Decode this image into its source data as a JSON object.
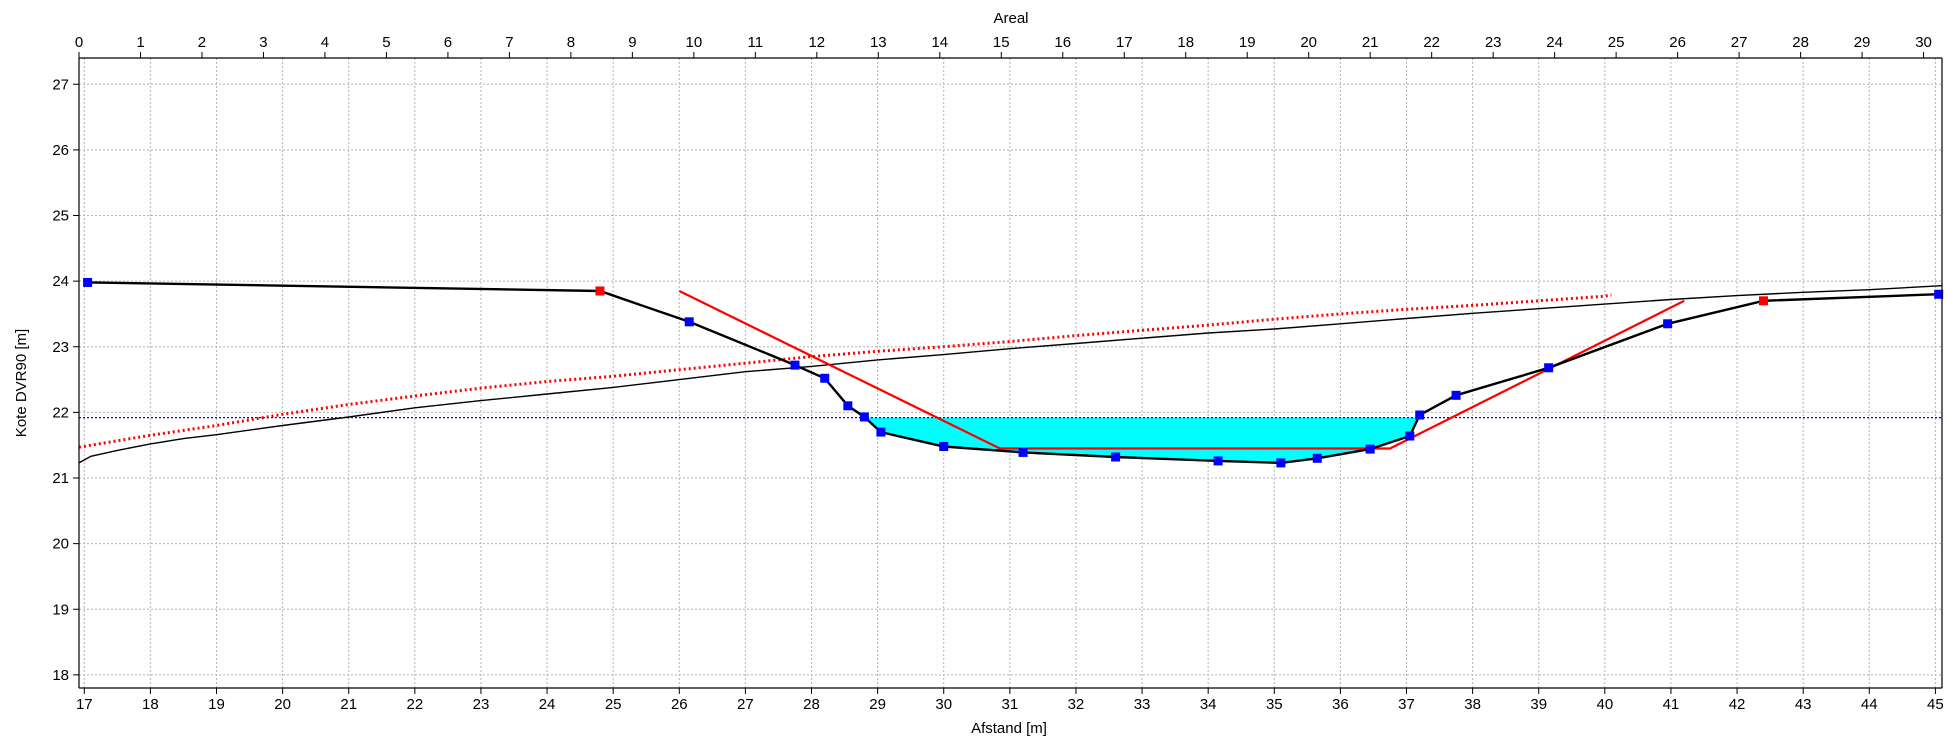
{
  "chart_data": {
    "type": "line",
    "title": "",
    "top_axis": {
      "label": "Areal",
      "range": [
        0,
        30.3
      ],
      "ticks": [
        0,
        1,
        2,
        3,
        4,
        5,
        6,
        7,
        8,
        9,
        10,
        11,
        12,
        13,
        14,
        15,
        16,
        17,
        18,
        19,
        20,
        21,
        22,
        23,
        24,
        25,
        26,
        27,
        28,
        29,
        30
      ]
    },
    "xlabel": "Afstand [m]",
    "ylabel": "Kote DVR90 [m]",
    "xlim": [
      16.92,
      45.1
    ],
    "ylim": [
      17.8,
      27.4
    ],
    "xticks": [
      17,
      18,
      19,
      20,
      21,
      22,
      23,
      24,
      25,
      26,
      27,
      28,
      29,
      30,
      31,
      32,
      33,
      34,
      35,
      36,
      37,
      38,
      39,
      40,
      41,
      42,
      43,
      44,
      45
    ],
    "yticks": [
      18,
      19,
      20,
      21,
      22,
      23,
      24,
      25,
      26,
      27
    ],
    "grid": true,
    "water_level": 21.92,
    "series": [
      {
        "kind": "cross-section",
        "color": "#000000",
        "x": [
          17.05,
          24.8,
          26.15,
          27.75,
          28.2,
          28.55,
          28.8,
          29.05,
          30.0,
          31.2,
          32.6,
          34.15,
          35.1,
          35.65,
          36.45,
          37.05,
          37.2,
          37.75,
          39.15,
          40.95,
          42.4,
          45.05
        ],
        "y": [
          23.98,
          23.85,
          23.38,
          22.72,
          22.52,
          22.1,
          21.93,
          21.7,
          21.48,
          21.39,
          21.32,
          21.26,
          21.23,
          21.3,
          21.44,
          21.64,
          21.96,
          22.26,
          22.68,
          23.35,
          23.7,
          23.8
        ],
        "markers": [
          {
            "x": 17.05,
            "y": 23.98,
            "color": "#0000ff"
          },
          {
            "x": 24.8,
            "y": 23.85,
            "color": "#ff0000"
          },
          {
            "x": 26.15,
            "y": 23.38,
            "color": "#0000ff"
          },
          {
            "x": 27.75,
            "y": 22.72,
            "color": "#0000ff"
          },
          {
            "x": 28.2,
            "y": 22.52,
            "color": "#0000ff"
          },
          {
            "x": 28.55,
            "y": 22.1,
            "color": "#0000ff"
          },
          {
            "x": 28.8,
            "y": 21.93,
            "color": "#0000ff"
          },
          {
            "x": 29.05,
            "y": 21.7,
            "color": "#0000ff"
          },
          {
            "x": 30.0,
            "y": 21.48,
            "color": "#0000ff"
          },
          {
            "x": 31.2,
            "y": 21.39,
            "color": "#0000ff"
          },
          {
            "x": 32.6,
            "y": 21.32,
            "color": "#0000ff"
          },
          {
            "x": 34.15,
            "y": 21.26,
            "color": "#0000ff"
          },
          {
            "x": 35.1,
            "y": 21.23,
            "color": "#0000ff"
          },
          {
            "x": 35.65,
            "y": 21.3,
            "color": "#0000ff"
          },
          {
            "x": 36.45,
            "y": 21.44,
            "color": "#0000ff"
          },
          {
            "x": 37.05,
            "y": 21.64,
            "color": "#0000ff"
          },
          {
            "x": 37.2,
            "y": 21.96,
            "color": "#0000ff"
          },
          {
            "x": 37.75,
            "y": 22.26,
            "color": "#0000ff"
          },
          {
            "x": 39.15,
            "y": 22.68,
            "color": "#0000ff"
          },
          {
            "x": 40.95,
            "y": 23.35,
            "color": "#0000ff"
          },
          {
            "x": 42.4,
            "y": 23.7,
            "color": "#ff0000"
          },
          {
            "x": 45.05,
            "y": 23.8,
            "color": "#0000ff"
          }
        ]
      },
      {
        "kind": "design-profile",
        "color": "#ff0000",
        "x": [
          26.0,
          30.85,
          36.75,
          41.2
        ],
        "y": [
          23.85,
          21.45,
          21.45,
          23.7
        ]
      },
      {
        "kind": "area-curve",
        "color": "#000000",
        "x": [
          16.92,
          17.1,
          17.5,
          18.0,
          18.5,
          19.0,
          20.0,
          21.0,
          22.0,
          23.0,
          24.0,
          25.0,
          26.0,
          27.0,
          28.0,
          29.0,
          30.0,
          31.0,
          32.0,
          33.0,
          34.0,
          35.0,
          36.0,
          37.0,
          38.0,
          39.0,
          40.0,
          41.0,
          42.0,
          43.0,
          44.0,
          45.1
        ],
        "y": [
          21.23,
          21.33,
          21.42,
          21.52,
          21.6,
          21.66,
          21.8,
          21.93,
          22.07,
          22.18,
          22.28,
          22.38,
          22.5,
          22.62,
          22.7,
          22.8,
          22.88,
          22.97,
          23.05,
          23.13,
          23.21,
          23.27,
          23.35,
          23.43,
          23.51,
          23.58,
          23.65,
          23.72,
          23.78,
          23.83,
          23.87,
          23.93
        ]
      },
      {
        "kind": "area-curve-dotted",
        "color": "#ff0000",
        "x": [
          16.92,
          18.0,
          19.0,
          20.0,
          21.0,
          22.0,
          23.0,
          24.0,
          25.0,
          26.0,
          27.0,
          28.0,
          29.0,
          30.0,
          31.0,
          32.0,
          33.0,
          34.0,
          35.0,
          36.0,
          37.0,
          38.0,
          39.0,
          40.0,
          40.1
        ],
        "y": [
          21.47,
          21.65,
          21.8,
          21.97,
          22.12,
          22.25,
          22.37,
          22.47,
          22.55,
          22.65,
          22.75,
          22.85,
          22.93,
          23.0,
          23.08,
          23.17,
          23.25,
          23.33,
          23.42,
          23.5,
          23.57,
          23.63,
          23.7,
          23.77,
          23.79
        ]
      }
    ]
  }
}
